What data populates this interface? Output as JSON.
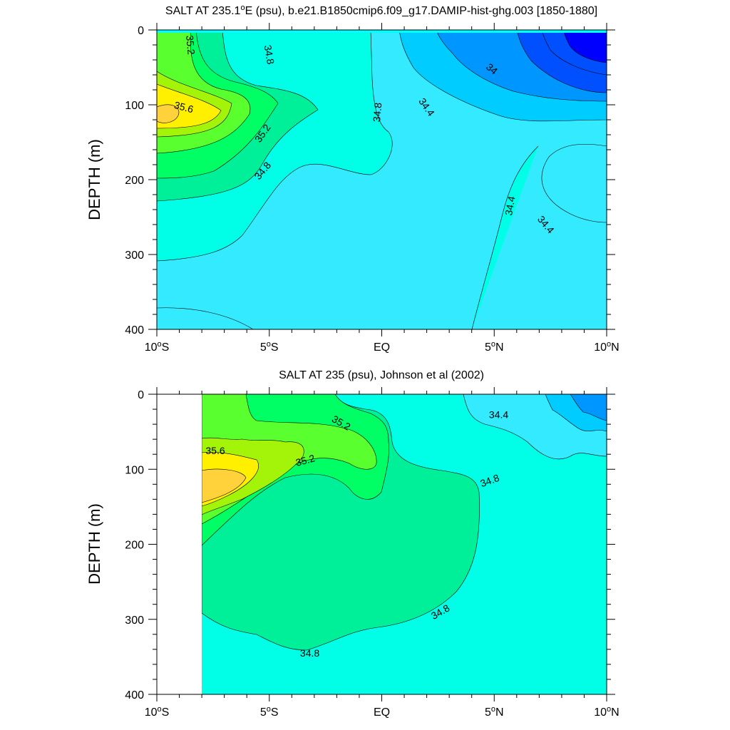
{
  "chart_data": [
    {
      "type": "heatmap",
      "subtype": "filled-contour",
      "title": "SALT AT 235.1°E (psu), b.e21.B1850cmip6.f09_g17.DAMIP-hist-ghg.003 [1850-1880]",
      "title_main": "SALT AT 235.1",
      "title_sup": "o",
      "title_rest": "E (psu), b.e21.B1850cmip6.f09_g17.DAMIP-hist-ghg.003 [1850-1880]",
      "ylabel": "DEPTH (m)",
      "xlim": [
        -10,
        10
      ],
      "ylim": [
        0,
        400
      ],
      "y_inverted": true,
      "x_ticks": [
        {
          "value": -10,
          "pre": "10",
          "post": "S"
        },
        {
          "value": -5,
          "pre": "5",
          "post": "S"
        },
        {
          "value": 0,
          "pre": "EQ",
          "post": ""
        },
        {
          "value": 5,
          "pre": "5",
          "post": "N"
        },
        {
          "value": 10,
          "pre": "10",
          "post": "N"
        }
      ],
      "y_ticks": [
        "0",
        "100",
        "200",
        "300",
        "400"
      ],
      "levels": [
        {
          "level": 33.6,
          "color": "#0000ff"
        },
        {
          "level": 33.8,
          "color": "#0050ff"
        },
        {
          "level": 34.0,
          "color": "#0096ff"
        },
        {
          "level": 34.2,
          "color": "#00ccff"
        },
        {
          "level": 34.4,
          "color": "#34eaff"
        },
        {
          "level": 34.6,
          "color": "#00ffe6"
        },
        {
          "level": 34.8,
          "color": "#00f09a"
        },
        {
          "level": 35.0,
          "color": "#00ff64"
        },
        {
          "level": 35.2,
          "color": "#5aff2e"
        },
        {
          "level": 35.4,
          "color": "#a4f40a"
        },
        {
          "level": 35.6,
          "color": "#fff000"
        },
        {
          "level": 35.8,
          "color": "#ffd23c"
        }
      ],
      "contour_labels": [
        {
          "text": "35.2",
          "x": -8.5,
          "y": 20,
          "rot": 85
        },
        {
          "text": "34.8",
          "x": -5.0,
          "y": 33,
          "rot": 80
        },
        {
          "text": "35.6",
          "x": -8.8,
          "y": 103,
          "rot": 15
        },
        {
          "text": "35.2",
          "x": -5.3,
          "y": 138,
          "rot": -55
        },
        {
          "text": "34.8",
          "x": -5.3,
          "y": 188,
          "rot": -50
        },
        {
          "text": "34.8",
          "x": -0.2,
          "y": 110,
          "rot": -85
        },
        {
          "text": "34.4",
          "x": 2.0,
          "y": 103,
          "rot": 55
        },
        {
          "text": "34",
          "x": 4.9,
          "y": 52,
          "rot": 40
        },
        {
          "text": "34.4",
          "x": 5.7,
          "y": 235,
          "rot": -80
        },
        {
          "text": "34.4",
          "x": 7.3,
          "y": 260,
          "rot": 50
        }
      ]
    },
    {
      "type": "heatmap",
      "subtype": "filled-contour",
      "title": "SALT AT 235 (psu), Johnson et al (2002)",
      "ylabel": "DEPTH (m)",
      "xlim": [
        -10,
        10
      ],
      "ylim": [
        0,
        400
      ],
      "y_inverted": true,
      "data_start_x": -8,
      "x_ticks": [
        {
          "value": -10,
          "pre": "10",
          "post": "S"
        },
        {
          "value": -5,
          "pre": "5",
          "post": "S"
        },
        {
          "value": 0,
          "pre": "EQ",
          "post": ""
        },
        {
          "value": 5,
          "pre": "5",
          "post": "N"
        },
        {
          "value": 10,
          "pre": "10",
          "post": "N"
        }
      ],
      "y_ticks": [
        "0",
        "100",
        "200",
        "300",
        "400"
      ],
      "contour_labels": [
        {
          "text": "35.2",
          "x": -1.8,
          "y": 38,
          "rot": 30
        },
        {
          "text": "34.4",
          "x": 5.2,
          "y": 27,
          "rot": 0
        },
        {
          "text": "35.6",
          "x": -7.4,
          "y": 75,
          "rot": 0
        },
        {
          "text": "35.2",
          "x": -3.4,
          "y": 88,
          "rot": -15
        },
        {
          "text": "34.8",
          "x": 4.8,
          "y": 115,
          "rot": -20
        },
        {
          "text": "34.8",
          "x": 2.6,
          "y": 290,
          "rot": -30
        },
        {
          "text": "34.8",
          "x": -3.2,
          "y": 345,
          "rot": 0
        }
      ]
    }
  ]
}
